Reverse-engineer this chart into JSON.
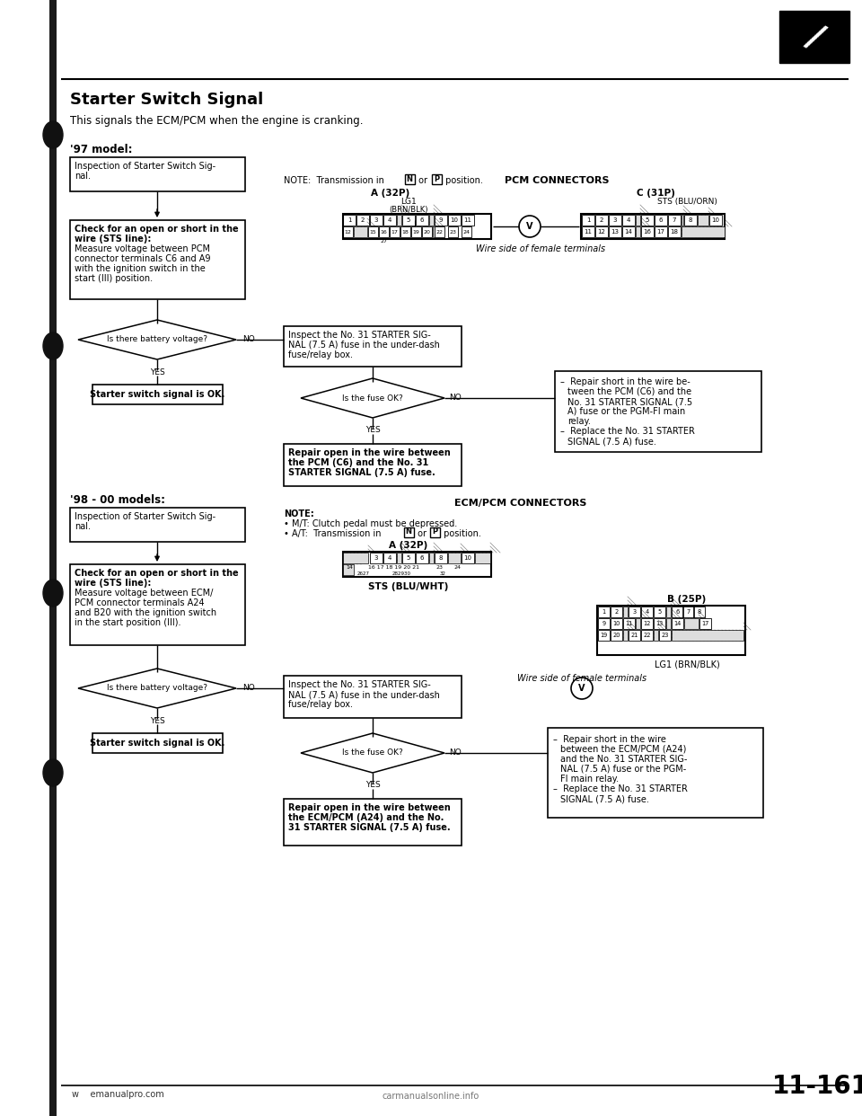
{
  "title": "Starter Switch Signal",
  "subtitle": "This signals the ECM/PCM when the engine is cranking.",
  "model97_label": "'97 model:",
  "model98_label": "'98 - 00 models:",
  "page_number": "11-161",
  "website_left": "w    emanualpro.com",
  "website_bottom": "carmanualsonline.info",
  "bg_color": "#ffffff",
  "fig_w": 9.6,
  "fig_h": 12.42,
  "dpi": 100
}
